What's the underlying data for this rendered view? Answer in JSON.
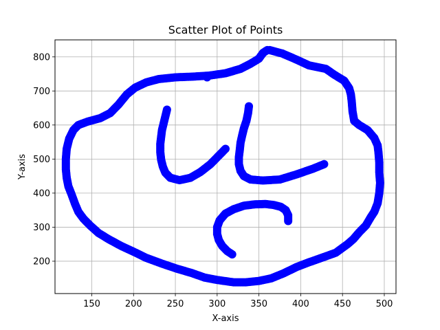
{
  "chart_data": {
    "type": "scatter",
    "title": "Scatter Plot of Points",
    "xlabel": "X-axis",
    "ylabel": "Y-axis",
    "xlim": [
      106,
      514
    ],
    "ylim": [
      105,
      850
    ],
    "xticks": [
      150,
      200,
      250,
      300,
      350,
      400,
      450,
      500
    ],
    "yticks": [
      200,
      300,
      400,
      500,
      600,
      700,
      800
    ],
    "grid": true,
    "marker_color": "#0000ff",
    "series": [
      {
        "name": "",
        "points": [
          [
            363,
            820
          ],
          [
            378,
            810
          ],
          [
            395,
            792
          ],
          [
            410,
            775
          ],
          [
            430,
            765
          ],
          [
            440,
            748
          ],
          [
            452,
            730
          ],
          [
            458,
            708
          ],
          [
            460,
            690
          ],
          [
            461,
            670
          ],
          [
            462,
            640
          ],
          [
            464,
            612
          ],
          [
            470,
            600
          ],
          [
            480,
            585
          ],
          [
            488,
            562
          ],
          [
            492,
            540
          ],
          [
            493,
            520
          ],
          [
            494,
            490
          ],
          [
            494,
            460
          ],
          [
            495,
            430
          ],
          [
            494,
            400
          ],
          [
            492,
            370
          ],
          [
            488,
            345
          ],
          [
            484,
            330
          ],
          [
            478,
            305
          ],
          [
            470,
            285
          ],
          [
            463,
            265
          ],
          [
            456,
            250
          ],
          [
            442,
            225
          ],
          [
            425,
            210
          ],
          [
            410,
            197
          ],
          [
            395,
            183
          ],
          [
            380,
            165
          ],
          [
            365,
            150
          ],
          [
            350,
            142
          ],
          [
            334,
            138
          ],
          [
            320,
            138
          ],
          [
            300,
            145
          ],
          [
            285,
            152
          ],
          [
            270,
            165
          ],
          [
            252,
            178
          ],
          [
            235,
            192
          ],
          [
            215,
            210
          ],
          [
            200,
            228
          ],
          [
            185,
            245
          ],
          [
            170,
            265
          ],
          [
            158,
            283
          ],
          [
            148,
            305
          ],
          [
            140,
            325
          ],
          [
            134,
            345
          ],
          [
            130,
            368
          ],
          [
            126,
            395
          ],
          [
            122,
            420
          ],
          [
            120,
            445
          ],
          [
            119,
            470
          ],
          [
            119,
            500
          ],
          [
            120,
            530
          ],
          [
            123,
            560
          ],
          [
            128,
            585
          ],
          [
            134,
            600
          ],
          [
            145,
            610
          ],
          [
            160,
            620
          ],
          [
            172,
            635
          ],
          [
            182,
            660
          ],
          [
            192,
            690
          ],
          [
            202,
            710
          ],
          [
            215,
            725
          ],
          [
            230,
            735
          ],
          [
            250,
            740
          ],
          [
            270,
            742
          ],
          [
            290,
            745
          ],
          [
            310,
            752
          ],
          [
            328,
            765
          ],
          [
            340,
            780
          ],
          [
            350,
            795
          ],
          [
            355,
            812
          ],
          [
            360,
            820
          ],
          [
            288,
            740
          ],
          [
            240,
            645
          ],
          [
            238,
            625
          ],
          [
            236,
            605
          ],
          [
            234,
            585
          ],
          [
            233,
            565
          ],
          [
            232,
            545
          ],
          [
            232,
            520
          ],
          [
            233,
            498
          ],
          [
            235,
            478
          ],
          [
            238,
            460
          ],
          [
            244,
            445
          ],
          [
            255,
            438
          ],
          [
            268,
            445
          ],
          [
            280,
            462
          ],
          [
            292,
            485
          ],
          [
            302,
            510
          ],
          [
            310,
            530
          ],
          [
            338,
            655
          ],
          [
            337,
            635
          ],
          [
            335,
            612
          ],
          [
            332,
            590
          ],
          [
            330,
            570
          ],
          [
            328,
            548
          ],
          [
            327,
            525
          ],
          [
            326,
            505
          ],
          [
            326,
            485
          ],
          [
            328,
            465
          ],
          [
            332,
            450
          ],
          [
            340,
            440
          ],
          [
            355,
            437
          ],
          [
            375,
            440
          ],
          [
            395,
            455
          ],
          [
            415,
            472
          ],
          [
            428,
            485
          ],
          [
            385,
            318
          ],
          [
            385,
            335
          ],
          [
            382,
            350
          ],
          [
            376,
            360
          ],
          [
            368,
            365
          ],
          [
            358,
            368
          ],
          [
            345,
            367
          ],
          [
            332,
            363
          ],
          [
            320,
            353
          ],
          [
            310,
            340
          ],
          [
            303,
            320
          ],
          [
            300,
            300
          ],
          [
            300,
            280
          ],
          [
            302,
            262
          ],
          [
            306,
            245
          ],
          [
            312,
            230
          ],
          [
            318,
            220
          ]
        ]
      }
    ]
  }
}
